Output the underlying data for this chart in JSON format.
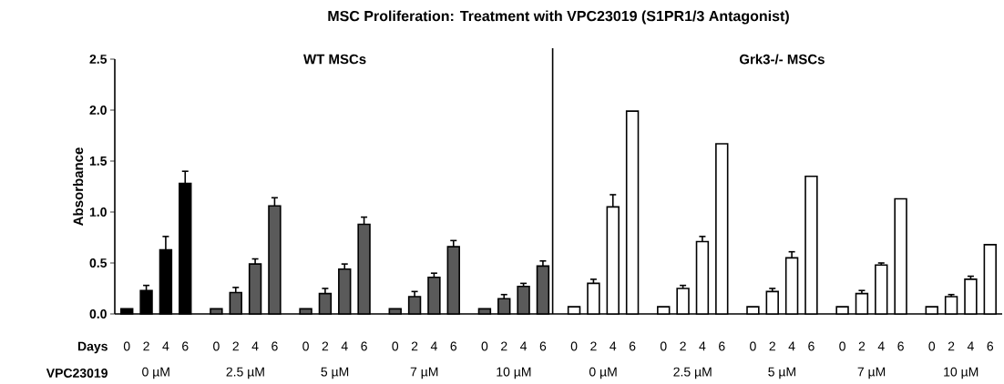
{
  "chart_data": {
    "type": "bar",
    "title": "MSC Proliferation: Treatment with VPC23019 (S1PR1/3 Antagonist)",
    "ylabel": "Absorbance",
    "categories": [
      "0",
      "2",
      "4",
      "6",
      "0",
      "2",
      "4",
      "6",
      "0",
      "2",
      "4",
      "6",
      "0",
      "2",
      "4",
      "6",
      "0",
      "2",
      "4",
      "6",
      "0",
      "2",
      "4",
      "6",
      "0",
      "2",
      "4",
      "6",
      "0",
      "2",
      "4",
      "6",
      "0",
      "2",
      "4",
      "6",
      "0",
      "2",
      "4",
      "6"
    ],
    "values": [
      0.05,
      0.23,
      0.63,
      1.28,
      0.05,
      0.21,
      0.49,
      1.06,
      0.05,
      0.2,
      0.44,
      0.88,
      0.05,
      0.17,
      0.36,
      0.66,
      0.05,
      0.15,
      0.27,
      0.47,
      0.07,
      0.3,
      1.05,
      1.99,
      0.07,
      0.25,
      0.71,
      1.67,
      0.07,
      0.22,
      0.55,
      1.35,
      0.07,
      0.2,
      0.48,
      1.13,
      0.07,
      0.17,
      0.34,
      0.68
    ],
    "errors": [
      null,
      0.05,
      0.13,
      0.12,
      null,
      0.05,
      0.05,
      0.08,
      null,
      0.05,
      0.05,
      0.07,
      null,
      0.05,
      0.04,
      0.06,
      null,
      0.04,
      0.03,
      0.05,
      null,
      0.04,
      0.12,
      null,
      null,
      0.03,
      0.05,
      null,
      null,
      0.03,
      0.06,
      null,
      null,
      0.03,
      0.02,
      null,
      null,
      0.02,
      0.03,
      null
    ],
    "colors": [
      "#000000",
      "#000000",
      "#000000",
      "#000000",
      "#5a5a5a",
      "#5a5a5a",
      "#5a5a5a",
      "#5a5a5a",
      "#5a5a5a",
      "#5a5a5a",
      "#5a5a5a",
      "#5a5a5a",
      "#5a5a5a",
      "#5a5a5a",
      "#5a5a5a",
      "#5a5a5a",
      "#5a5a5a",
      "#5a5a5a",
      "#5a5a5a",
      "#5a5a5a",
      "#ffffff",
      "#ffffff",
      "#ffffff",
      "#ffffff",
      "#ffffff",
      "#ffffff",
      "#ffffff",
      "#ffffff",
      "#ffffff",
      "#ffffff",
      "#ffffff",
      "#ffffff",
      "#ffffff",
      "#ffffff",
      "#ffffff",
      "#ffffff",
      "#ffffff",
      "#ffffff",
      "#ffffff",
      "#ffffff"
    ],
    "ylim": [
      0,
      2.5
    ],
    "yticks": [
      {
        "value": 0,
        "label": "0.0"
      },
      {
        "value": 0.5,
        "label": "0.5"
      },
      {
        "value": 1,
        "label": "1.0"
      },
      {
        "value": 1.5,
        "label": "1.5"
      },
      {
        "value": 2,
        "label": "2.0"
      },
      {
        "value": 2.5,
        "label": "2.5"
      }
    ],
    "grid": false,
    "annotations": [
      "WT MSCs",
      "Grk3-/- MSCs",
      "Days",
      "VPC23019",
      "0 µM",
      "2.5 µM",
      "5 µM",
      "7 µM",
      "10 µM",
      "0 µM",
      "2.5 µM",
      "5 µM",
      "7 µM",
      "10 µM"
    ]
  }
}
